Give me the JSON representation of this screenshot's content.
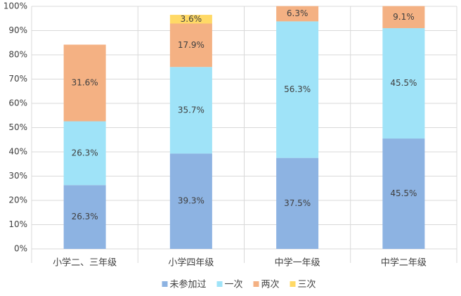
{
  "chart_data": {
    "type": "stacked_bar",
    "categories": [
      "小学二、三年级",
      "小学四年级",
      "中学一年级",
      "中学二年级"
    ],
    "series": [
      {
        "name": "未参加过",
        "color": "#8db3e2",
        "values": [
          26.3,
          39.3,
          37.5,
          45.5
        ],
        "value_labels": [
          "26.3%",
          "39.3%",
          "37.5%",
          "45.5%"
        ]
      },
      {
        "name": "一次",
        "color": "#9fe3f8",
        "values": [
          26.3,
          35.7,
          56.3,
          45.5
        ],
        "value_labels": [
          "26.3%",
          "35.7%",
          "56.3%",
          "45.5%"
        ]
      },
      {
        "name": "两次",
        "color": "#f4b183",
        "values": [
          31.6,
          17.9,
          6.3,
          9.1
        ],
        "value_labels": [
          "31.6%",
          "17.9%",
          "6.3%",
          "9.1%"
        ]
      },
      {
        "name": "三次",
        "color": "#ffd966",
        "values": [
          null,
          3.6,
          null,
          null
        ],
        "value_labels": [
          null,
          "3.6%",
          null,
          null
        ]
      }
    ],
    "ylim": [
      0,
      100
    ],
    "yticks": [
      {
        "value": 0,
        "label": "0%"
      },
      {
        "value": 10,
        "label": "10%"
      },
      {
        "value": 20,
        "label": "20%"
      },
      {
        "value": 30,
        "label": "30%"
      },
      {
        "value": 40,
        "label": "40%"
      },
      {
        "value": 50,
        "label": "50%"
      },
      {
        "value": 60,
        "label": "60%"
      },
      {
        "value": 70,
        "label": "70%"
      },
      {
        "value": 80,
        "label": "80%"
      },
      {
        "value": 90,
        "label": "90%"
      },
      {
        "value": 100,
        "label": "100%"
      }
    ],
    "grid": true,
    "legend": "bottom"
  }
}
